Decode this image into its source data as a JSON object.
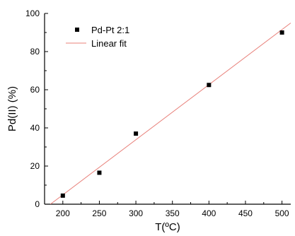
{
  "chart_data": {
    "type": "scatter",
    "title": "",
    "xlabel": "T(ºC)",
    "ylabel": "Pd(II) (%)",
    "xlim": [
      175,
      512
    ],
    "ylim": [
      0,
      100
    ],
    "xticks": [
      200,
      250,
      300,
      350,
      400,
      450,
      500
    ],
    "yticks": [
      0,
      20,
      40,
      60,
      80,
      100
    ],
    "grid": false,
    "legend_position": "top-left",
    "series": [
      {
        "name": "Pd-Pt 2:1",
        "kind": "scatter",
        "marker": "square",
        "color": "#000000",
        "x": [
          200,
          250,
          300,
          400,
          500
        ],
        "y": [
          4.5,
          16.5,
          37,
          62.5,
          90
        ]
      },
      {
        "name": "Linear fit",
        "kind": "line",
        "color": "#e8807a",
        "x": [
          183,
          512
        ],
        "y": [
          0,
          95
        ]
      }
    ]
  }
}
